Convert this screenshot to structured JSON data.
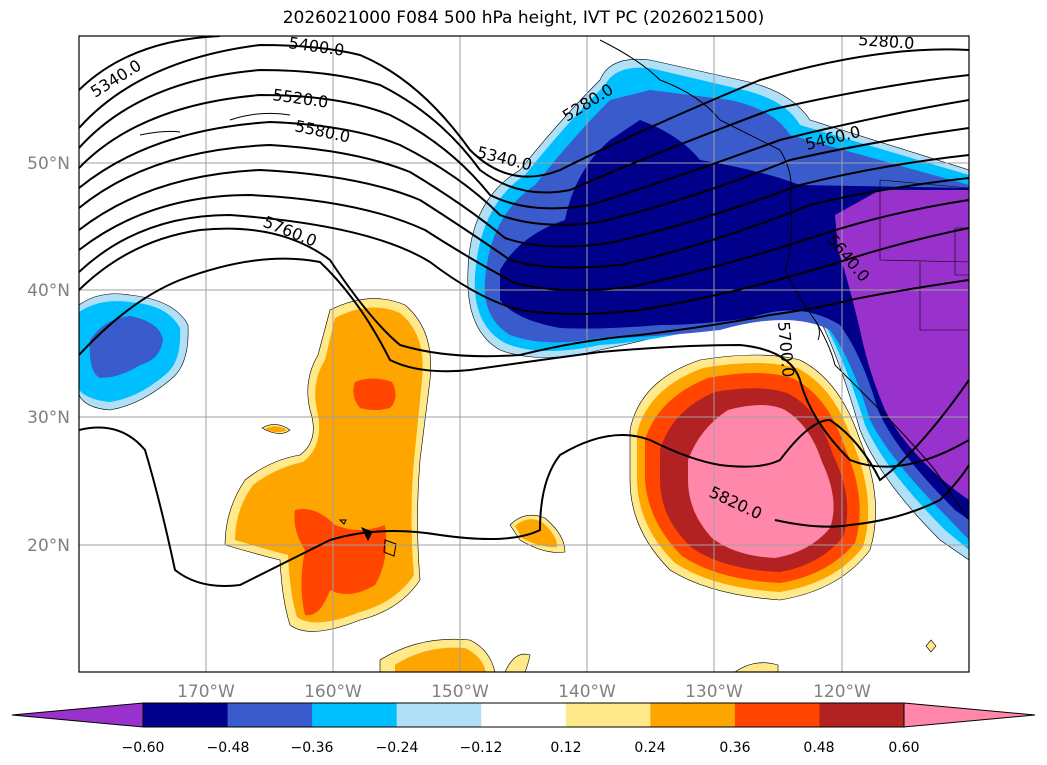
{
  "title": "2026021000 F084 500 hPa height, IVT PC (2026021500)",
  "map": {
    "lon_range": [
      -180,
      -110
    ],
    "lat_range": [
      10,
      60
    ],
    "lon_ticks": [
      {
        "value": -170,
        "label": "170°W"
      },
      {
        "value": -160,
        "label": "160°W"
      },
      {
        "value": -150,
        "label": "150°W"
      },
      {
        "value": -140,
        "label": "140°W"
      },
      {
        "value": -130,
        "label": "130°W"
      },
      {
        "value": -120,
        "label": "120°W"
      }
    ],
    "lat_ticks": [
      {
        "value": 50,
        "label": "50°N"
      },
      {
        "value": 40,
        "label": "40°N"
      },
      {
        "value": 30,
        "label": "30°N"
      },
      {
        "value": 20,
        "label": "20°N"
      }
    ],
    "grid": true,
    "height_contour_labels": [
      "5400.0",
      "5340.0",
      "5520.0",
      "5580.0",
      "5280.0",
      "5340.0",
      "5280.0",
      "5460.0",
      "5760.0",
      "5640.0",
      "5700.0",
      "5820.0"
    ]
  },
  "colorbar": {
    "colors": [
      "#9932cc",
      "#00008b",
      "#3a5bcc",
      "#00bfff",
      "#b0e0f8",
      "#ffffff",
      "#ffe98a",
      "#ffa500",
      "#ff4500",
      "#b22222",
      "#ff88aa"
    ],
    "tick_labels": [
      "−0.60",
      "−0.48",
      "−0.36",
      "−0.24",
      "−0.12",
      "0.12",
      "0.24",
      "0.36",
      "0.48",
      "0.60"
    ],
    "extend": "both"
  }
}
